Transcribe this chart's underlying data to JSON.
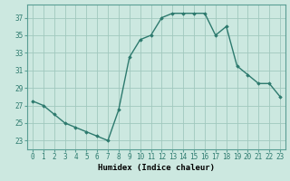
{
  "x": [
    0,
    1,
    2,
    3,
    4,
    5,
    6,
    7,
    8,
    9,
    10,
    11,
    12,
    13,
    14,
    15,
    16,
    17,
    18,
    19,
    20,
    21,
    22,
    23
  ],
  "y": [
    27.5,
    27.0,
    26.0,
    25.0,
    24.5,
    24.0,
    23.5,
    23.0,
    26.5,
    32.5,
    34.5,
    35.0,
    37.0,
    37.5,
    37.5,
    37.5,
    37.5,
    35.0,
    36.0,
    31.5,
    30.5,
    29.5,
    29.5,
    28.0
  ],
  "line_color": "#2d7a6e",
  "marker": "D",
  "marker_size": 1.8,
  "bg_color": "#cce8e0",
  "grid_color": "#a0c8be",
  "xlabel": "Humidex (Indice chaleur)",
  "ylim": [
    22,
    38.5
  ],
  "xlim": [
    -0.5,
    23.5
  ],
  "yticks": [
    23,
    25,
    27,
    29,
    31,
    33,
    35,
    37
  ],
  "xlabel_fontsize": 6.5,
  "tick_fontsize": 5.5,
  "linewidth": 1.0
}
